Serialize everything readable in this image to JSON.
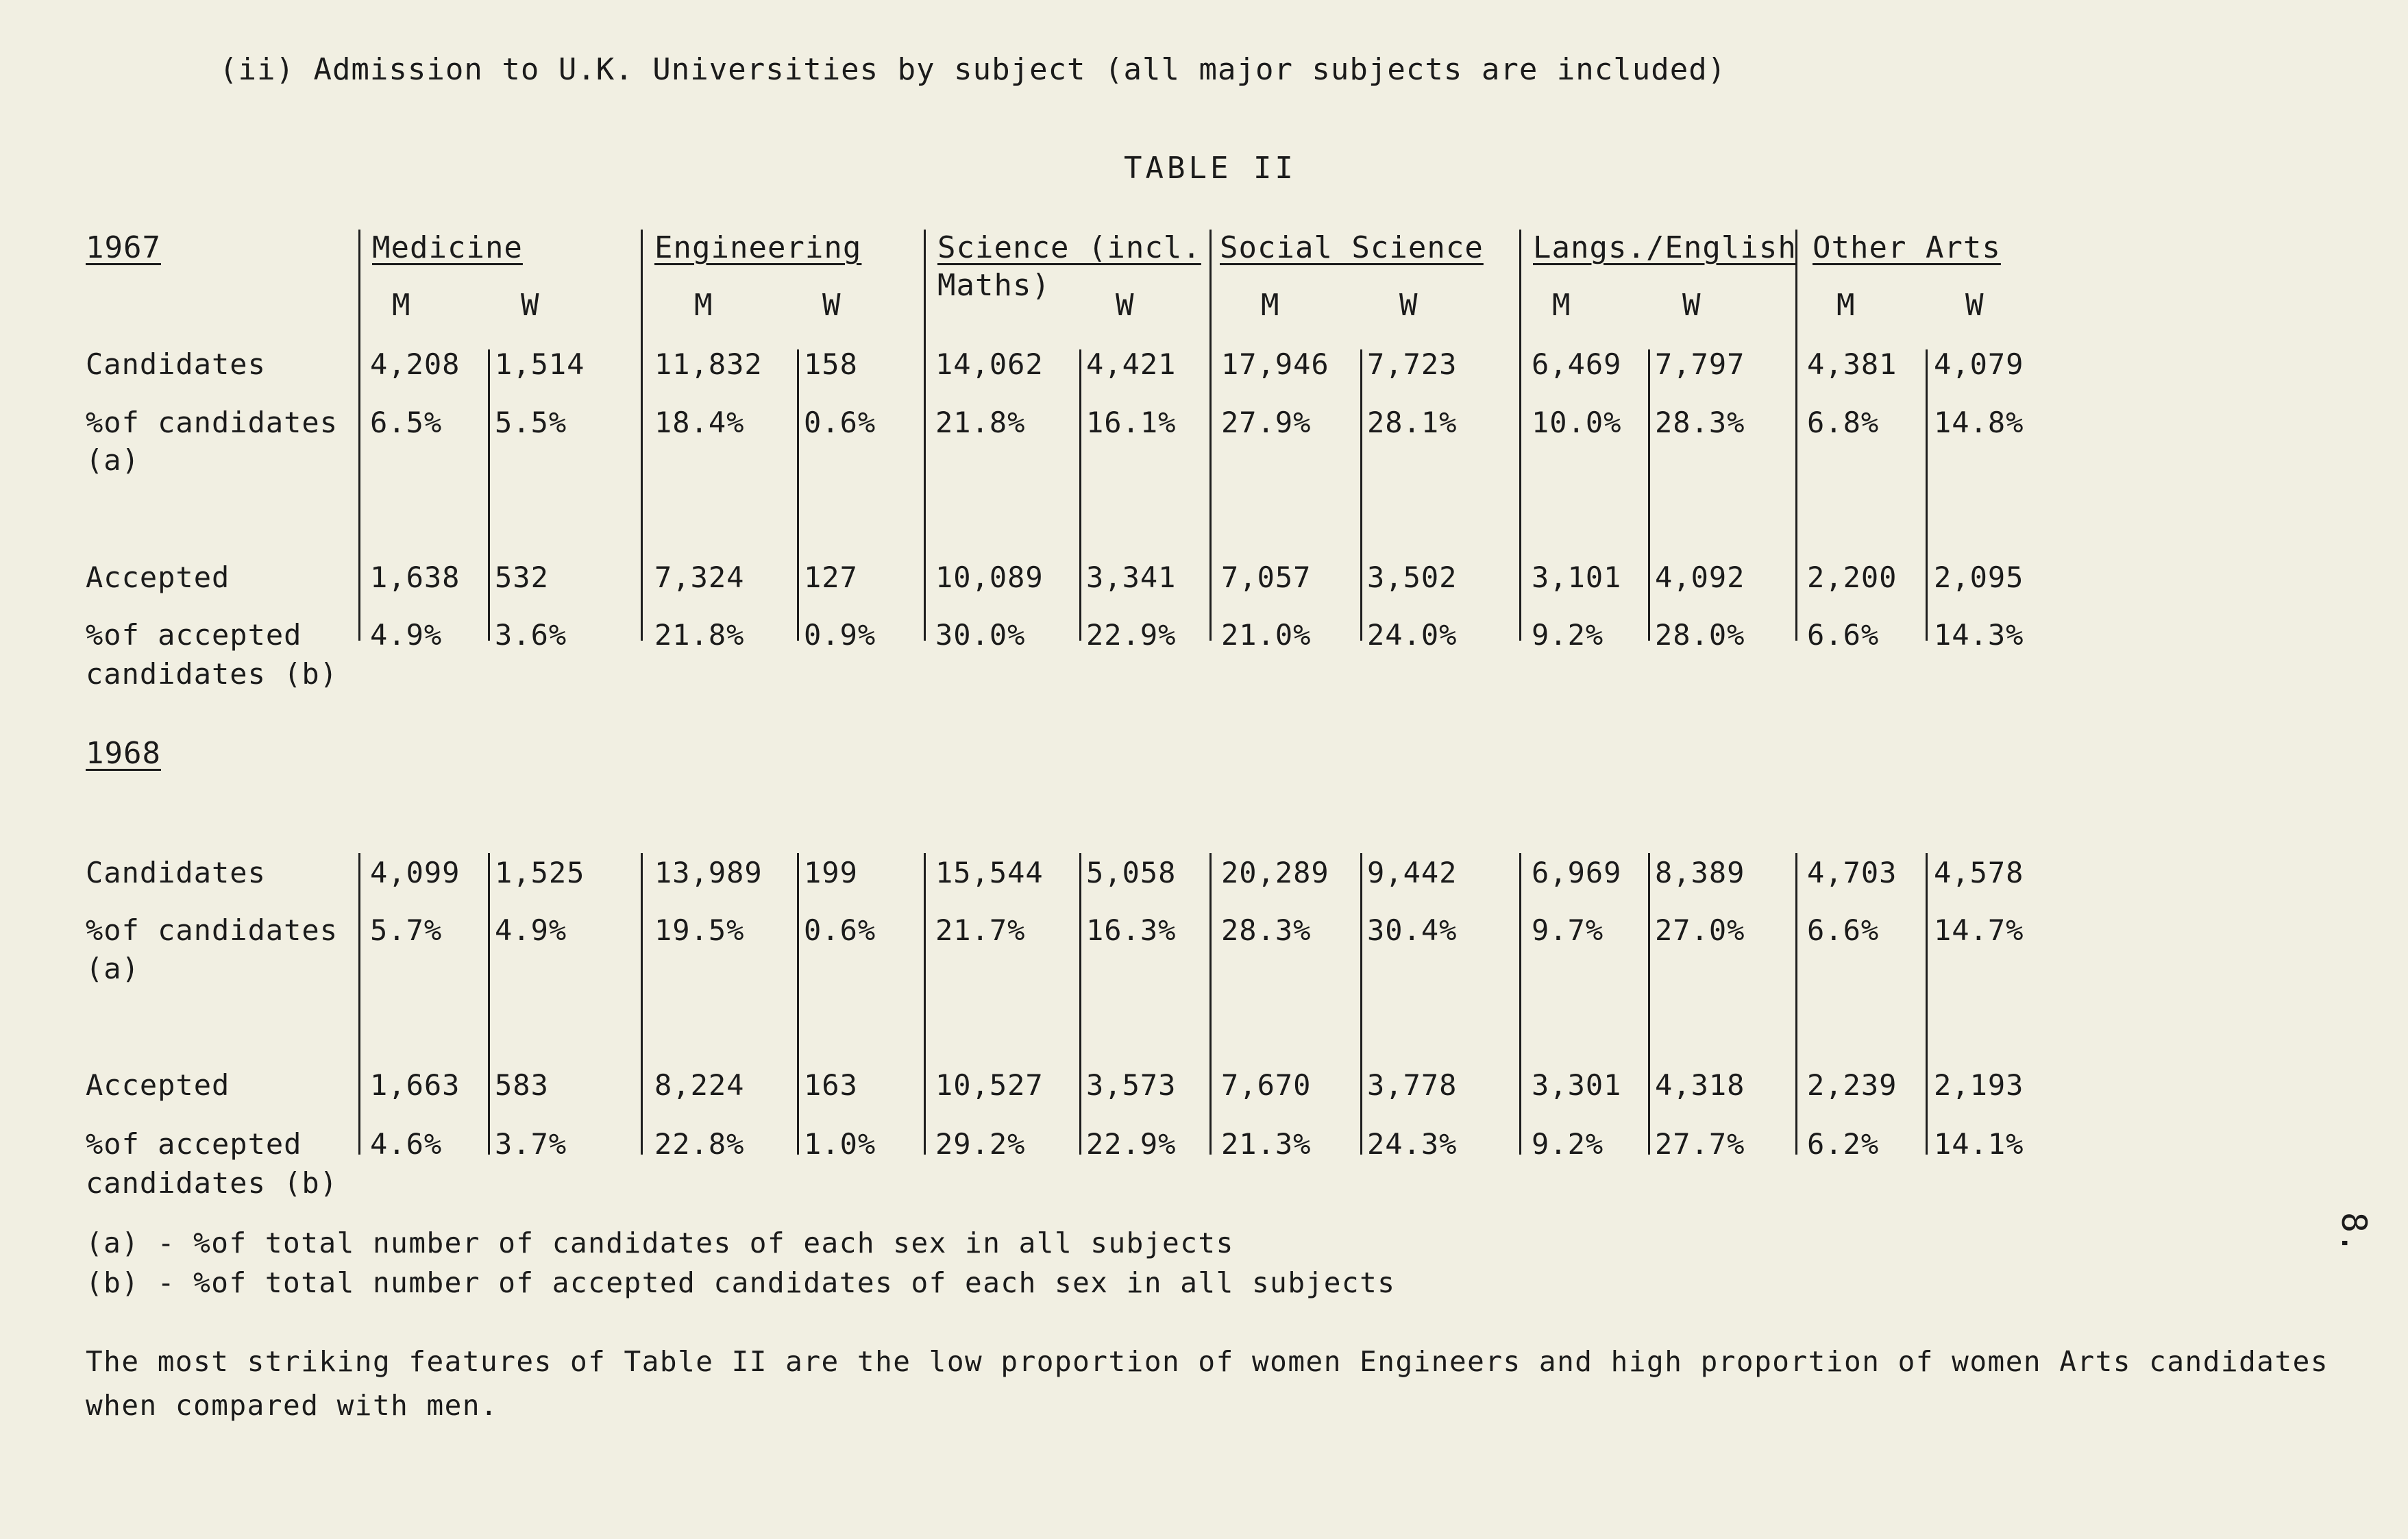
{
  "section_heading": "(ii)  Admission to U.K. Universities by subject (all major subjects are included)",
  "table_title": "TABLE  II",
  "subjects": [
    "Medicine",
    "Engineering",
    "Science (incl.",
    "Social Science",
    "Langs./English",
    "Other Arts"
  ],
  "science_line2": "Maths)",
  "sex_labels": {
    "m": "M",
    "w": "W"
  },
  "years": [
    "1967",
    "1968"
  ],
  "row_labels": {
    "candidates": "Candidates",
    "pct_candidates": "%of candidates",
    "pct_candidates_note": "(a)",
    "accepted": "Accepted",
    "pct_accepted": "%of accepted",
    "pct_accepted_line2": "candidates (b)"
  },
  "data_1967": {
    "candidates": [
      "4,208",
      "1,514",
      "11,832",
      "158",
      "14,062",
      "4,421",
      "17,946",
      "7,723",
      "6,469",
      "7,797",
      "4,381",
      "4,079"
    ],
    "pct_candidates": [
      "6.5%",
      "5.5%",
      "18.4%",
      "0.6%",
      "21.8%",
      "16.1%",
      "27.9%",
      "28.1%",
      "10.0%",
      "28.3%",
      "6.8%",
      "14.8%"
    ],
    "accepted": [
      "1,638",
      "532",
      "7,324",
      "127",
      "10,089",
      "3,341",
      "7,057",
      "3,502",
      "3,101",
      "4,092",
      "2,200",
      "2,095"
    ],
    "pct_accepted": [
      "4.9%",
      "3.6%",
      "21.8%",
      "0.9%",
      "30.0%",
      "22.9%",
      "21.0%",
      "24.0%",
      "9.2%",
      "28.0%",
      "6.6%",
      "14.3%"
    ]
  },
  "data_1968": {
    "candidates": [
      "4,099",
      "1,525",
      "13,989",
      "199",
      "15,544",
      "5,058",
      "20,289",
      "9,442",
      "6,969",
      "8,389",
      "4,703",
      "4,578"
    ],
    "pct_candidates": [
      "5.7%",
      "4.9%",
      "19.5%",
      "0.6%",
      "21.7%",
      "16.3%",
      "28.3%",
      "30.4%",
      "9.7%",
      "27.0%",
      "6.6%",
      "14.7%"
    ],
    "accepted": [
      "1,663",
      "583",
      "8,224",
      "163",
      "10,527",
      "3,573",
      "7,670",
      "3,778",
      "3,301",
      "4,318",
      "2,239",
      "2,193"
    ],
    "pct_accepted": [
      "4.6%",
      "3.7%",
      "22.8%",
      "1.0%",
      "29.2%",
      "22.9%",
      "21.3%",
      "24.3%",
      "9.2%",
      "27.7%",
      "6.2%",
      "14.1%"
    ]
  },
  "footnotes": [
    "(a) - %of total number of candidates of each sex in all subjects",
    "(b) - %of total number of accepted candidates of each sex in all subjects"
  ],
  "conclusion": [
    "The most striking features of Table II are the low proportion of women Engineers and high proportion of women Arts candidates",
    "when compared with men."
  ],
  "page_number": "8."
}
